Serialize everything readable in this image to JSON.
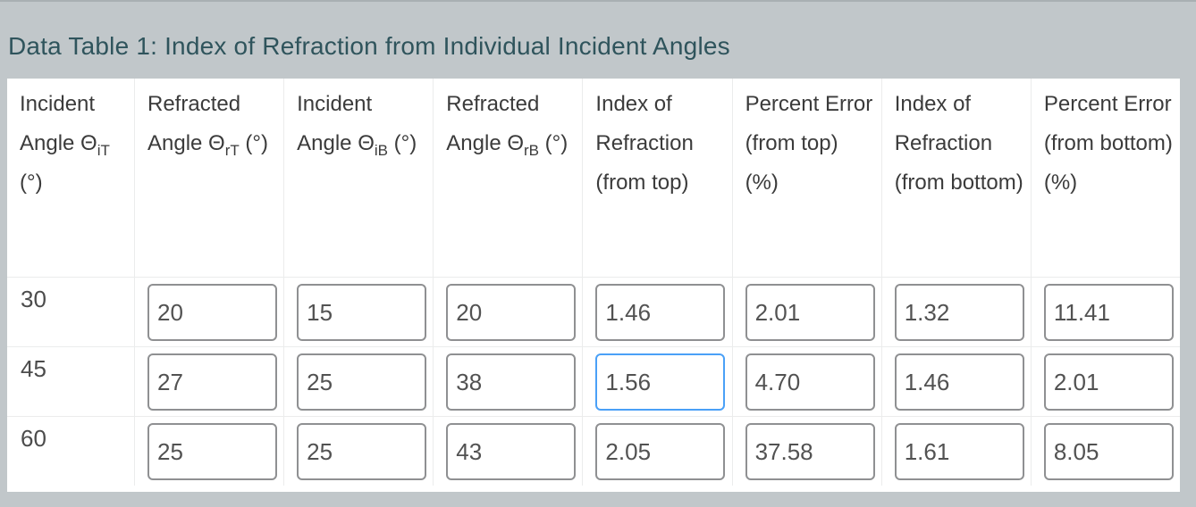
{
  "colors": {
    "page_background": "#c1c7ca",
    "title_text": "#2f545c",
    "focus_ring": "#4aa0f7"
  },
  "title": "Data Table 1: Index of Refraction from Individual Incident Angles",
  "table": {
    "headers": [
      {
        "pre": "Incident Angle Θ",
        "sub": "iT",
        "post": " (°)"
      },
      {
        "pre": "Refracted Angle Θ",
        "sub": "rT",
        "post": " (°)"
      },
      {
        "pre": "Incident Angle Θ",
        "sub": "iB",
        "post": " (°)"
      },
      {
        "pre": "Refracted Angle Θ",
        "sub": "rB",
        "post": " (°)"
      },
      {
        "pre": "Index of Refraction (from top)",
        "sub": "",
        "post": ""
      },
      {
        "pre": "Percent Error (from top) (%)",
        "sub": "",
        "post": ""
      },
      {
        "pre": "Index of Refraction (from bottom)",
        "sub": "",
        "post": ""
      },
      {
        "pre": "Percent Error (from bottom) (%)",
        "sub": "",
        "post": ""
      }
    ],
    "rows": [
      {
        "incident_angle": "30",
        "inputs": [
          "20",
          "15",
          "20",
          "1.46",
          "2.01",
          "1.32",
          "11.41"
        ]
      },
      {
        "incident_angle": "45",
        "inputs": [
          "27",
          "25",
          "38",
          "1.56",
          "4.70",
          "1.46",
          "2.01"
        ]
      },
      {
        "incident_angle": "60",
        "inputs": [
          "25",
          "25",
          "43",
          "2.05",
          "37.58",
          "1.61",
          "8.05"
        ]
      }
    ],
    "focused_cell": {
      "row": 1,
      "input": 3
    }
  }
}
